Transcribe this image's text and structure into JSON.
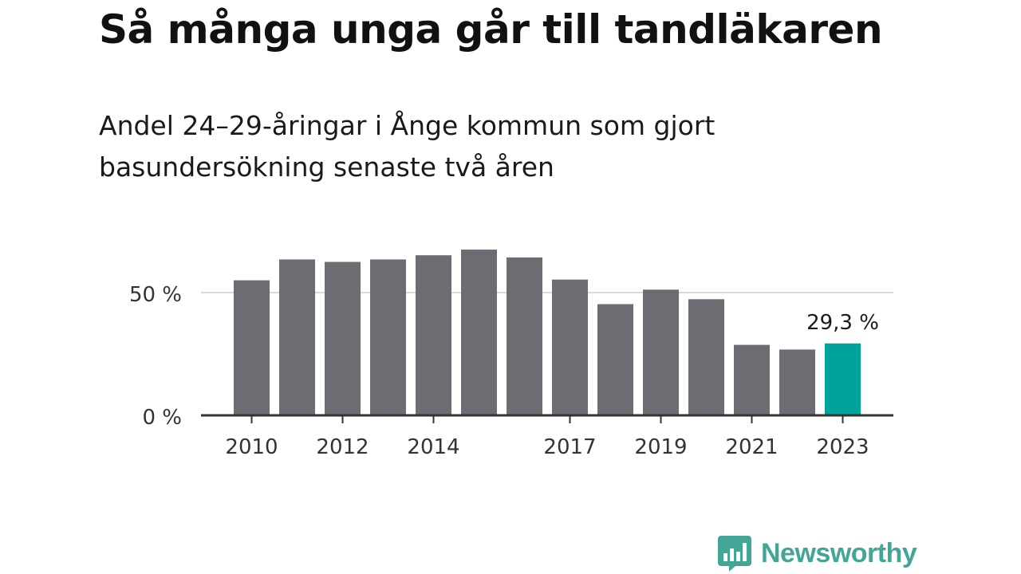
{
  "header": {
    "title": "Så många unga går till tandläkaren",
    "subtitle": "Andel 24–29-åringar i Ånge kommun som gjort basundersökning senaste två åren"
  },
  "chart_data": {
    "type": "bar",
    "categories": [
      "2010",
      "2011",
      "2012",
      "2013",
      "2014",
      "2015",
      "2016",
      "2017",
      "2018",
      "2019",
      "2020",
      "2021",
      "2022",
      "2023"
    ],
    "values": [
      55,
      63.5,
      62.5,
      63.5,
      65.2,
      67.5,
      64.3,
      55.3,
      45.3,
      51.2,
      47.3,
      28.7,
      26.8,
      29.3
    ],
    "x_tick_labels": [
      "2010",
      "2012",
      "2014",
      "2017",
      "2019",
      "2021",
      "2023"
    ],
    "y_ticks": [
      0,
      50
    ],
    "y_tick_labels": [
      "0 %",
      "50 %"
    ],
    "ylim": [
      0,
      70
    ],
    "highlight": {
      "category": "2023",
      "label": "29,3 %"
    },
    "grid": true,
    "colors": {
      "bar": "#6d6c72",
      "highlight": "#00a39a",
      "grid": "#d9d9d9",
      "axis": "#333333"
    }
  },
  "brand": {
    "name": "Newsworthy",
    "color": "#42a596",
    "icon": "bar-chart-speech-bubble-icon"
  }
}
